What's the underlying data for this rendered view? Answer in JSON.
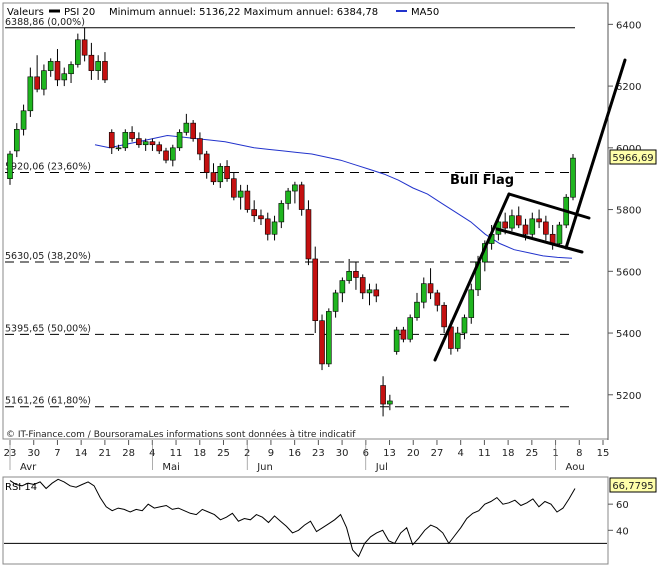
{
  "header": {
    "valeurs_label": "Valeurs",
    "series_label": "PSI 20",
    "minmax_label": "Minimum annuel: 5136,22 Maximum annuel: 6384,78",
    "ma_label": "MA50",
    "psi_color": "#000000",
    "ma_color": "#2233cc"
  },
  "source_text": "© IT-Finance.com / BoursoramaLes informations sont données à titre indicatif",
  "annotation": "Bull Flag",
  "last_price_label": "5966,69",
  "rsi": {
    "label": "RSI 14",
    "value_label": "66,7795",
    "yticks": [
      {
        "value": 60,
        "label": "60"
      },
      {
        "value": 40,
        "label": "40"
      }
    ],
    "ylim": [
      15,
      80
    ],
    "threshold": 30,
    "values": [
      78,
      75,
      74,
      76,
      75,
      77,
      72,
      76,
      79,
      77,
      74,
      73,
      75,
      77,
      74,
      65,
      58,
      55,
      57,
      56,
      54,
      56,
      55,
      60,
      57,
      58,
      59,
      56,
      57,
      55,
      53,
      52,
      56,
      54,
      52,
      48,
      50,
      53,
      47,
      49,
      48,
      52,
      50,
      46,
      51,
      47,
      43,
      38,
      40,
      44,
      47,
      39,
      42,
      45,
      48,
      52,
      42,
      25,
      20,
      30,
      35,
      38,
      40,
      32,
      30,
      38,
      42,
      29,
      34,
      40,
      44,
      42,
      38,
      30,
      36,
      42,
      49,
      53,
      55,
      60,
      62,
      65,
      60,
      61,
      63,
      59,
      61,
      64,
      58,
      62,
      60,
      54,
      57,
      64,
      72
    ]
  },
  "chart_data": {
    "type": "candlestick",
    "series_name": "PSI 20",
    "ylim": [
      5060,
      6440
    ],
    "yticks": [
      5200,
      5400,
      5600,
      5800,
      6000,
      6200,
      6400
    ],
    "x_tick_labels": [
      "23",
      "30",
      "7",
      "14",
      "21",
      "28",
      "4",
      "11",
      "18",
      "25",
      "2",
      "9",
      "16",
      "23",
      "30",
      "6",
      "13",
      "20",
      "27",
      "4",
      "11",
      "18",
      "25",
      "1",
      "8",
      "15"
    ],
    "month_labels": [
      "Avr",
      "Mai",
      "Jun",
      "Jul",
      "Aou"
    ],
    "fibonacci_levels": [
      {
        "value": 6388.86,
        "label": "6388,86 (0,00%)",
        "style": "solid"
      },
      {
        "value": 5920.06,
        "label": "5920,06 (23,60%)",
        "style": "dashed"
      },
      {
        "value": 5630.05,
        "label": "5630,05 (38,20%)",
        "style": "dashed"
      },
      {
        "value": 5395.65,
        "label": "5395,65 (50,00%)",
        "style": "dashed"
      },
      {
        "value": 5161.26,
        "label": "5161,26 (61,80%)",
        "style": "dashed"
      }
    ],
    "last_price": 5966.69,
    "ohlc": [
      [
        5900,
        5990,
        5880,
        5980
      ],
      [
        5990,
        6080,
        5970,
        6060
      ],
      [
        6060,
        6140,
        6040,
        6120
      ],
      [
        6120,
        6260,
        6100,
        6230
      ],
      [
        6230,
        6300,
        6180,
        6190
      ],
      [
        6190,
        6270,
        6170,
        6250
      ],
      [
        6250,
        6290,
        6230,
        6280
      ],
      [
        6280,
        6320,
        6200,
        6220
      ],
      [
        6220,
        6260,
        6200,
        6240
      ],
      [
        6240,
        6280,
        6210,
        6270
      ],
      [
        6270,
        6370,
        6260,
        6350
      ],
      [
        6350,
        6390,
        6280,
        6300
      ],
      [
        6300,
        6340,
        6220,
        6250
      ],
      [
        6250,
        6300,
        6220,
        6280
      ],
      [
        6280,
        6310,
        6210,
        6220
      ],
      [
        6050,
        6060,
        5980,
        6000
      ],
      [
        6000,
        6010,
        5990,
        6000
      ],
      [
        6000,
        6060,
        5990,
        6050
      ],
      [
        6050,
        6070,
        6020,
        6030
      ],
      [
        6030,
        6050,
        6000,
        6010
      ],
      [
        6010,
        6030,
        5990,
        6020
      ],
      [
        6020,
        6030,
        5990,
        6010
      ],
      [
        6010,
        6020,
        5980,
        5990
      ],
      [
        5990,
        6000,
        5950,
        5960
      ],
      [
        5960,
        6010,
        5940,
        6000
      ],
      [
        6000,
        6060,
        5990,
        6050
      ],
      [
        6050,
        6110,
        6040,
        6080
      ],
      [
        6080,
        6090,
        6020,
        6030
      ],
      [
        6030,
        6050,
        5960,
        5980
      ],
      [
        5980,
        5990,
        5900,
        5920
      ],
      [
        5920,
        5950,
        5880,
        5890
      ],
      [
        5890,
        5950,
        5870,
        5940
      ],
      [
        5940,
        5960,
        5890,
        5900
      ],
      [
        5900,
        5920,
        5830,
        5840
      ],
      [
        5840,
        5880,
        5800,
        5860
      ],
      [
        5860,
        5880,
        5790,
        5800
      ],
      [
        5800,
        5830,
        5760,
        5780
      ],
      [
        5780,
        5800,
        5750,
        5770
      ],
      [
        5770,
        5790,
        5700,
        5720
      ],
      [
        5720,
        5780,
        5700,
        5760
      ],
      [
        5760,
        5830,
        5740,
        5820
      ],
      [
        5820,
        5870,
        5800,
        5860
      ],
      [
        5860,
        5890,
        5820,
        5880
      ],
      [
        5880,
        5890,
        5780,
        5800
      ],
      [
        5800,
        5830,
        5620,
        5640
      ],
      [
        5640,
        5680,
        5400,
        5440
      ],
      [
        5440,
        5460,
        5280,
        5300
      ],
      [
        5300,
        5480,
        5290,
        5470
      ],
      [
        5470,
        5540,
        5450,
        5530
      ],
      [
        5530,
        5580,
        5500,
        5570
      ],
      [
        5570,
        5640,
        5560,
        5600
      ],
      [
        5600,
        5630,
        5540,
        5580
      ],
      [
        5580,
        5590,
        5510,
        5530
      ],
      [
        5530,
        5560,
        5490,
        5540
      ],
      [
        5540,
        5560,
        5500,
        5520
      ],
      [
        5230,
        5260,
        5130,
        5170
      ],
      [
        5170,
        5200,
        5150,
        5180
      ],
      [
        5340,
        5420,
        5330,
        5410
      ],
      [
        5410,
        5420,
        5370,
        5380
      ],
      [
        5380,
        5460,
        5370,
        5450
      ],
      [
        5450,
        5530,
        5440,
        5500
      ],
      [
        5500,
        5580,
        5480,
        5560
      ],
      [
        5560,
        5610,
        5510,
        5530
      ],
      [
        5530,
        5540,
        5470,
        5490
      ],
      [
        5490,
        5500,
        5400,
        5420
      ],
      [
        5420,
        5440,
        5330,
        5350
      ],
      [
        5350,
        5420,
        5340,
        5400
      ],
      [
        5400,
        5460,
        5380,
        5450
      ],
      [
        5450,
        5560,
        5430,
        5540
      ],
      [
        5540,
        5650,
        5520,
        5630
      ],
      [
        5630,
        5700,
        5600,
        5690
      ],
      [
        5690,
        5750,
        5670,
        5720
      ],
      [
        5720,
        5780,
        5700,
        5760
      ],
      [
        5760,
        5790,
        5720,
        5740
      ],
      [
        5740,
        5800,
        5730,
        5780
      ],
      [
        5780,
        5810,
        5740,
        5750
      ],
      [
        5750,
        5770,
        5700,
        5720
      ],
      [
        5720,
        5790,
        5710,
        5770
      ],
      [
        5770,
        5800,
        5740,
        5760
      ],
      [
        5760,
        5780,
        5700,
        5720
      ],
      [
        5720,
        5750,
        5670,
        5690
      ],
      [
        5690,
        5760,
        5680,
        5750
      ],
      [
        5750,
        5850,
        5740,
        5840
      ],
      [
        5840,
        5980,
        5830,
        5966.69
      ]
    ],
    "ma50": [
      6010,
      6000,
      6010,
      6020,
      6030,
      6040,
      6035,
      6030,
      6025,
      6020,
      6010,
      6000,
      5995,
      5990,
      5985,
      5980,
      5970,
      5960,
      5945,
      5930,
      5915,
      5895,
      5870,
      5850,
      5820,
      5790,
      5760,
      5720,
      5690,
      5670,
      5660,
      5650,
      5645,
      5642
    ]
  }
}
